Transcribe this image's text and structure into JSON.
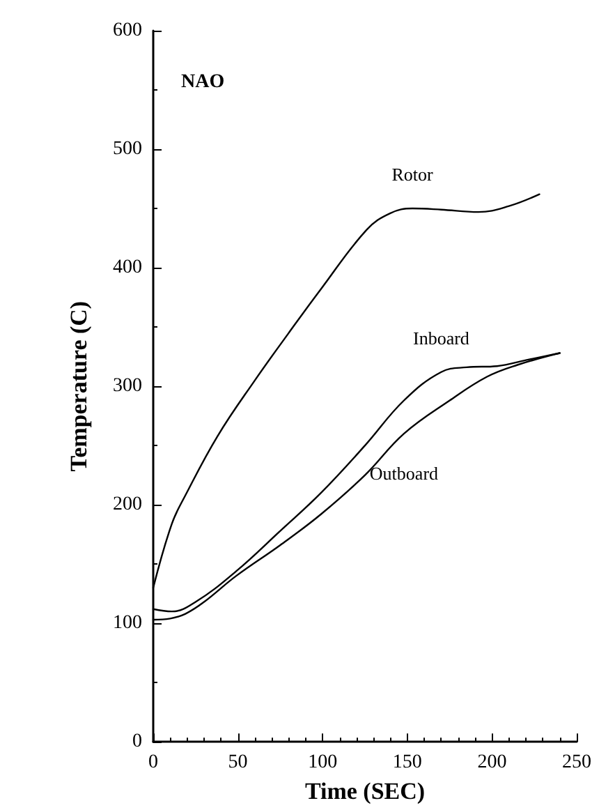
{
  "chart_data": {
    "type": "line",
    "xlabel": "Time (SEC)",
    "ylabel": "Temperature (C)",
    "xlim": [
      0,
      250
    ],
    "xticks": [
      0,
      50,
      100,
      150,
      200,
      250
    ],
    "ylim": [
      0,
      600
    ],
    "yticks": [
      0,
      100,
      200,
      300,
      400,
      500,
      600
    ],
    "grid": false,
    "line_style": "solid",
    "series": [
      {
        "name": "Rotor",
        "color": "#000000",
        "x": [
          0,
          11,
          19,
          38,
          60,
          80,
          99,
          126,
          140,
          153,
          170,
          192,
          210,
          228
        ],
        "values": [
          130,
          184,
          208,
          258,
          305,
          345,
          382,
          432,
          446,
          450,
          449,
          447,
          452,
          462
        ]
      },
      {
        "name": "Inboard",
        "color": "#000000",
        "x": [
          0,
          11,
          25,
          49,
          75,
          99,
          125,
          148,
          170,
          185,
          203,
          220,
          240
        ],
        "values": [
          112,
          110,
          118,
          144,
          178,
          210,
          250,
          288,
          312,
          316,
          317,
          322,
          328
        ]
      },
      {
        "name": "Outboard",
        "color": "#000000",
        "x": [
          0,
          10,
          19,
          30,
          49,
          75,
          99,
          125,
          148,
          175,
          197,
          215,
          240
        ],
        "values": [
          103,
          104,
          108,
          118,
          140,
          166,
          192,
          225,
          260,
          288,
          308,
          318,
          328
        ]
      }
    ],
    "annotations": [
      "NAO"
    ]
  }
}
